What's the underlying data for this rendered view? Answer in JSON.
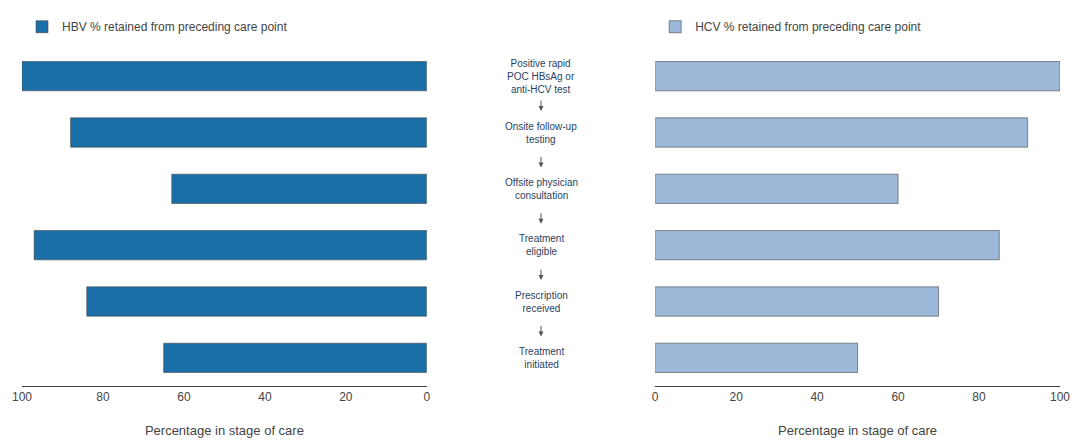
{
  "chart_data": [
    {
      "type": "bar",
      "orientation": "horizontal",
      "categories": [
        "Positive rapid\nPOC HBsAg or\nanti-HCV test",
        "Onsite follow-up\ntesting",
        "Offsite physician\nconsultation",
        "Treatment\neligible",
        "Prescription\nreceived",
        "Treatment\ninitiated"
      ],
      "series": [
        {
          "name": "HBV % retained from preceding care point",
          "color": "#1B6FA8",
          "values": [
            100,
            88,
            63,
            97,
            84,
            65
          ]
        }
      ],
      "xlabel": "Percentage in stage of care",
      "xlim": [
        100,
        0
      ],
      "xticks": [
        100,
        80,
        60,
        40,
        20,
        0
      ],
      "grid": false
    },
    {
      "type": "bar",
      "orientation": "horizontal",
      "categories": [
        "Positive rapid\nPOC HBsAg or\nanti-HCV test",
        "Onsite follow-up\ntesting",
        "Offsite physician\nconsultation",
        "Treatment\neligible",
        "Prescription\nreceived",
        "Treatment\ninitiated"
      ],
      "series": [
        {
          "name": "HCV % retained from preceding care point",
          "color": "#9DB8D9",
          "values": [
            100,
            92,
            60,
            85,
            70,
            50
          ]
        }
      ],
      "xlabel": "Percentage in stage of care",
      "xlim": [
        0,
        100
      ],
      "xticks": [
        0,
        20,
        40,
        60,
        80,
        100
      ],
      "grid": false
    }
  ]
}
